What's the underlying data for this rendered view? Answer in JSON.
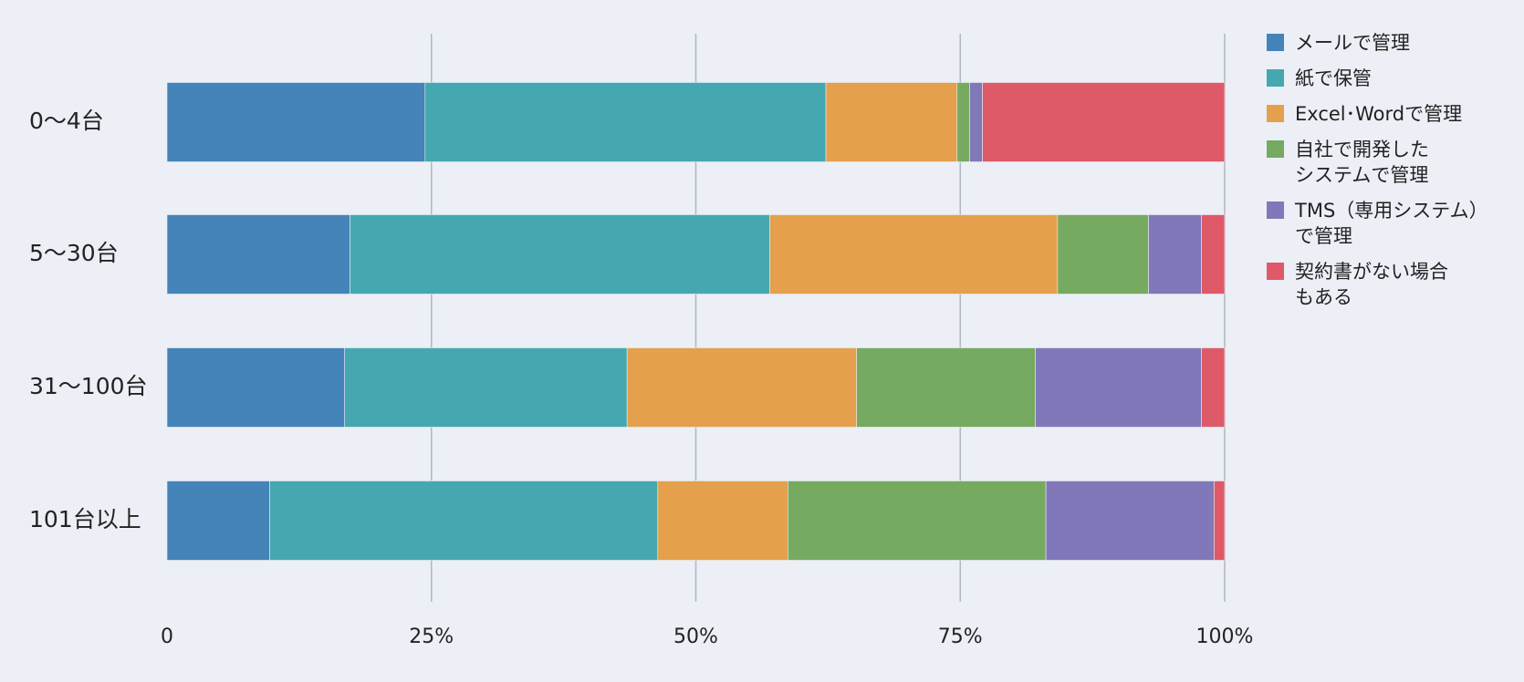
{
  "chart_data": {
    "type": "stacked-bar-horizontal",
    "categories": [
      "0～4台",
      "5～30台",
      "31～100台",
      "101台以上"
    ],
    "series": [
      {
        "name": "メールで管理",
        "color": "#4484b8",
        "values": [
          24.4,
          17.3,
          16.8,
          9.7
        ]
      },
      {
        "name": "紙で保管",
        "color": "#45a8b0",
        "values": [
          37.9,
          39.7,
          26.7,
          36.7
        ]
      },
      {
        "name": "Excel･Wordで管理",
        "color": "#e4a04c",
        "values": [
          12.4,
          27.2,
          21.7,
          12.3
        ]
      },
      {
        "name": "自社で開発した\nシステムで管理",
        "color": "#76aa60",
        "values": [
          1.2,
          8.6,
          16.9,
          24.4
        ]
      },
      {
        "name": "TMS（専用システム）\nで管理",
        "color": "#8078b8",
        "values": [
          1.2,
          5.0,
          15.7,
          15.9
        ]
      },
      {
        "name": "契約書がない場合\nもある",
        "color": "#de5a68",
        "values": [
          22.9,
          2.2,
          2.2,
          1.0
        ]
      }
    ],
    "xlim": [
      0,
      100
    ],
    "xticks": [
      0,
      {
        "value": 25,
        "label": "25%"
      },
      {
        "value": 50,
        "label": "50%"
      },
      {
        "value": 75,
        "label": "75%"
      },
      {
        "value": 100,
        "label": "100%"
      }
    ],
    "grid": true,
    "legend": "right"
  }
}
